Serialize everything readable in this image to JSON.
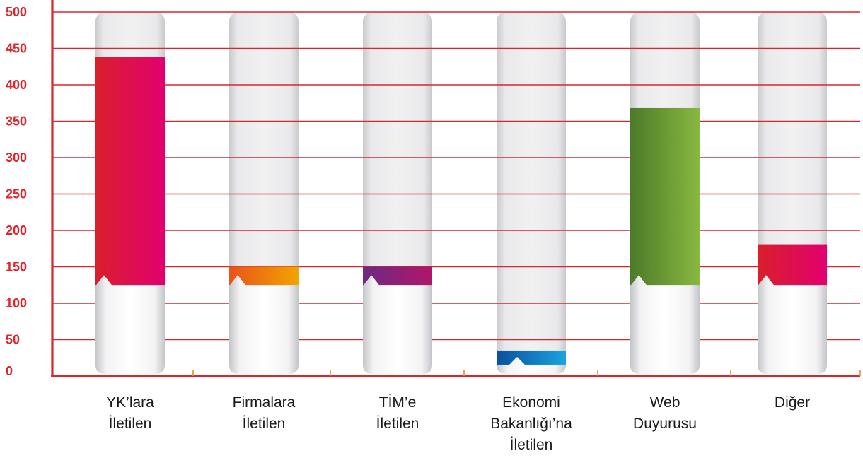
{
  "chart_data": {
    "type": "bar",
    "categories": [
      [
        "YK’lara",
        "İletilen"
      ],
      [
        "Firmalara",
        "İletilen"
      ],
      [
        "TİM’e",
        "İletilen"
      ],
      [
        "Ekonomi",
        "Bakanlığı’na",
        "İletilen"
      ],
      [
        "Web",
        "Duyurusu"
      ],
      [
        "Diğer"
      ]
    ],
    "values": [
      438,
      150,
      150,
      35,
      368,
      181
    ],
    "ylim": [
      0,
      500
    ],
    "yticks": [
      "0",
      "50",
      "100",
      "150",
      "200",
      "250",
      "300",
      "350",
      "400",
      "450",
      "500"
    ],
    "grid": true,
    "colors": {
      "axis": "#d8262f",
      "tick_text": "#e0242c",
      "bar_gradients": [
        [
          "#d91f2b",
          "#e2006f"
        ],
        [
          "#e8531b",
          "#f2a400"
        ],
        [
          "#6c2a84",
          "#b0166a"
        ],
        [
          "#0a4f9e",
          "#1aa3e0"
        ],
        [
          "#4d7a29",
          "#87b840"
        ],
        [
          "#d91f2b",
          "#e2006f"
        ]
      ]
    }
  }
}
